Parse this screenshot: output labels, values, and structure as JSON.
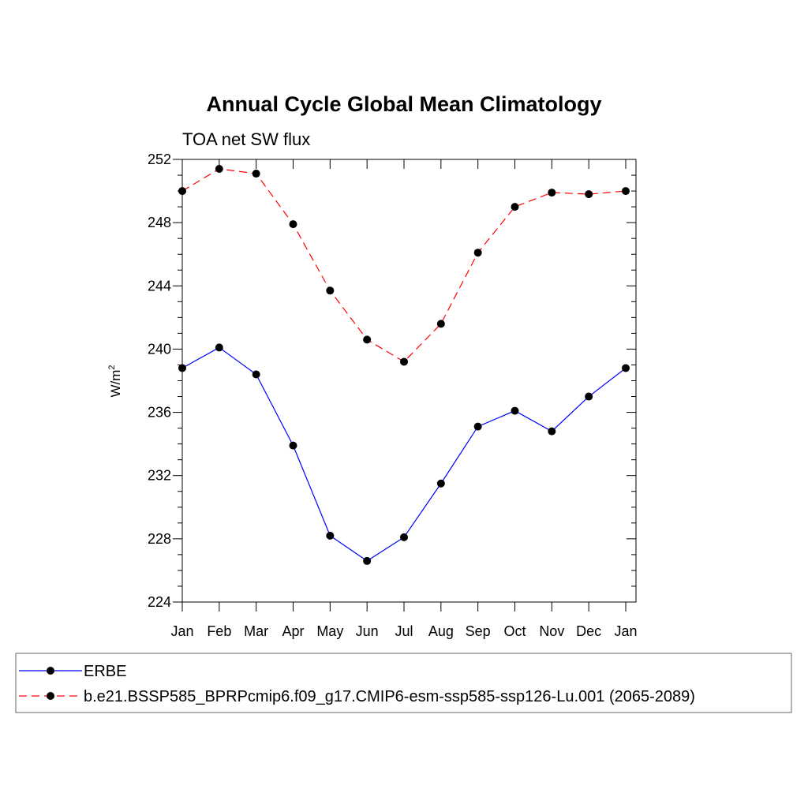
{
  "chart_data": {
    "type": "line",
    "title": "Annual Cycle Global Mean Climatology",
    "subtitle": "TOA net SW flux",
    "xlabel": "",
    "ylabel": "W/m",
    "ylabel_superscript": "2",
    "categories": [
      "Jan",
      "Feb",
      "Mar",
      "Apr",
      "May",
      "Jun",
      "Jul",
      "Aug",
      "Sep",
      "Oct",
      "Nov",
      "Dec",
      "Jan"
    ],
    "ylim": [
      224,
      252
    ],
    "yticks": [
      224,
      228,
      232,
      236,
      240,
      244,
      248,
      252
    ],
    "ytick_labels": [
      "224",
      "228",
      "232",
      "236",
      "240",
      "244",
      "248",
      "252"
    ],
    "grid": false,
    "legend_position": "bottom",
    "series": [
      {
        "name": "ERBE",
        "color": "#0000ff",
        "line_style": "solid",
        "marker": "filled-circle",
        "values": [
          238.8,
          240.1,
          238.4,
          233.9,
          228.2,
          226.6,
          228.1,
          231.5,
          235.1,
          236.1,
          234.8,
          237.0,
          238.8
        ]
      },
      {
        "name": "b.e21.BSSP585_BPRPcmip6.f09_g17.CMIP6-esm-ssp585-ssp126-Lu.001 (2065-2089)",
        "color": "#ff0000",
        "line_style": "dashed",
        "marker": "filled-circle",
        "values": [
          250.0,
          251.4,
          251.1,
          247.9,
          243.7,
          240.6,
          239.2,
          241.6,
          246.1,
          249.0,
          249.9,
          249.8,
          250.0
        ]
      }
    ]
  }
}
